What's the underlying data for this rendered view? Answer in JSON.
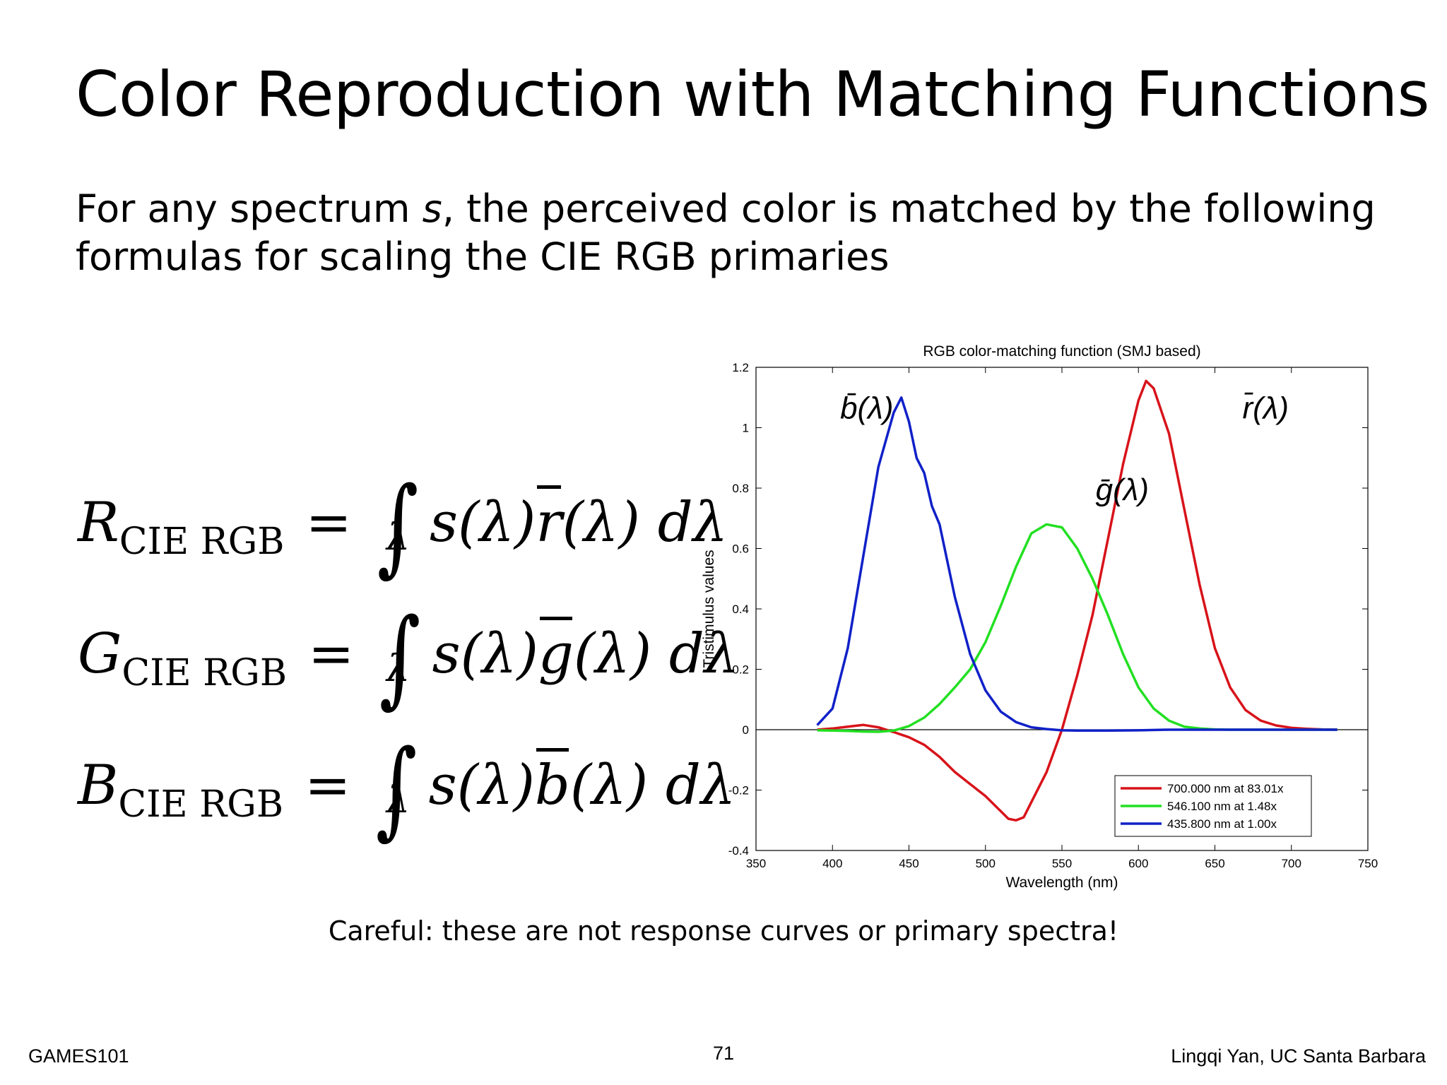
{
  "slide": {
    "title": "Color Reproduction with Matching Functions",
    "body_line1_pre": "For any spectrum ",
    "body_line1_var": "s",
    "body_line1_post": ", the perceived color is matched by the following",
    "body_line2": "formulas for scaling the CIE RGB primaries",
    "caption": "Careful: these are not response curves or primary spectra!",
    "footer_left": "GAMES101",
    "page_number": "71",
    "footer_right": "Lingqi Yan, UC Santa Barbara"
  },
  "formulas": [
    {
      "lhs": "R",
      "sub": "CIE RGB",
      "eq": "=",
      "lim": "λ",
      "integrand_pre": "s(λ)",
      "fn": "r",
      "integrand_post": "(λ) dλ"
    },
    {
      "lhs": "G",
      "sub": "CIE RGB",
      "eq": "=",
      "lim": "λ",
      "integrand_pre": "s(λ)",
      "fn": "g",
      "integrand_post": "(λ) dλ"
    },
    {
      "lhs": "B",
      "sub": "CIE RGB",
      "eq": "=",
      "lim": "λ",
      "integrand_pre": "s(λ)",
      "fn": "b",
      "integrand_post": "(λ) dλ"
    }
  ],
  "chart_data": {
    "type": "line",
    "title": "RGB color-matching function (SMJ based)",
    "xlabel": "Wavelength (nm)",
    "ylabel": "Tristimulus values",
    "xlim": [
      350,
      750
    ],
    "ylim": [
      -0.4,
      1.2
    ],
    "xticks": [
      "350",
      "400",
      "450",
      "500",
      "550",
      "600",
      "650",
      "700",
      "750"
    ],
    "yticks": [
      "-0.4",
      "-0.2",
      "0",
      "0.2",
      "0.4",
      "0.6",
      "0.8",
      "1",
      "1.2"
    ],
    "legend_position": "bottom-right",
    "annotations": [
      {
        "text": "b̄(λ)",
        "x": 405,
        "y": 1.03
      },
      {
        "text": "ḡ(λ)",
        "x": 572,
        "y": 0.76
      },
      {
        "text": "r̄(λ)",
        "x": 668,
        "y": 1.03
      }
    ],
    "series": [
      {
        "name": "700.000 nm at 83.01x",
        "color": "#d8131a",
        "points": [
          [
            390,
            0.0
          ],
          [
            400,
            0.004
          ],
          [
            410,
            0.01
          ],
          [
            420,
            0.016
          ],
          [
            430,
            0.008
          ],
          [
            440,
            -0.008
          ],
          [
            450,
            -0.025
          ],
          [
            460,
            -0.05
          ],
          [
            470,
            -0.09
          ],
          [
            480,
            -0.14
          ],
          [
            490,
            -0.18
          ],
          [
            500,
            -0.22
          ],
          [
            510,
            -0.27
          ],
          [
            515,
            -0.295
          ],
          [
            520,
            -0.3
          ],
          [
            525,
            -0.29
          ],
          [
            530,
            -0.24
          ],
          [
            540,
            -0.14
          ],
          [
            550,
            0.0
          ],
          [
            560,
            0.18
          ],
          [
            570,
            0.38
          ],
          [
            580,
            0.63
          ],
          [
            590,
            0.88
          ],
          [
            600,
            1.09
          ],
          [
            605,
            1.155
          ],
          [
            610,
            1.13
          ],
          [
            620,
            0.98
          ],
          [
            630,
            0.73
          ],
          [
            640,
            0.48
          ],
          [
            650,
            0.27
          ],
          [
            660,
            0.14
          ],
          [
            670,
            0.065
          ],
          [
            680,
            0.03
          ],
          [
            690,
            0.014
          ],
          [
            700,
            0.006
          ],
          [
            710,
            0.003
          ],
          [
            720,
            0.001
          ],
          [
            730,
            0.0
          ]
        ]
      },
      {
        "name": "546.100 nm at  1.48x",
        "color": "#22e022",
        "points": [
          [
            390,
            -0.002
          ],
          [
            400,
            -0.003
          ],
          [
            410,
            -0.004
          ],
          [
            420,
            -0.006
          ],
          [
            430,
            -0.007
          ],
          [
            440,
            -0.003
          ],
          [
            450,
            0.012
          ],
          [
            460,
            0.04
          ],
          [
            470,
            0.085
          ],
          [
            480,
            0.14
          ],
          [
            490,
            0.2
          ],
          [
            500,
            0.29
          ],
          [
            510,
            0.41
          ],
          [
            520,
            0.54
          ],
          [
            530,
            0.65
          ],
          [
            540,
            0.68
          ],
          [
            550,
            0.67
          ],
          [
            560,
            0.6
          ],
          [
            570,
            0.5
          ],
          [
            580,
            0.38
          ],
          [
            590,
            0.25
          ],
          [
            600,
            0.14
          ],
          [
            610,
            0.07
          ],
          [
            620,
            0.03
          ],
          [
            630,
            0.01
          ],
          [
            640,
            0.004
          ],
          [
            650,
            0.001
          ],
          [
            660,
            0.0
          ],
          [
            670,
            0.0
          ],
          [
            680,
            0.0
          ],
          [
            700,
            0.0
          ],
          [
            730,
            0.0
          ]
        ]
      },
      {
        "name": "435.800 nm at  1.00x",
        "color": "#1021c8",
        "points": [
          [
            390,
            0.015
          ],
          [
            400,
            0.07
          ],
          [
            410,
            0.27
          ],
          [
            420,
            0.57
          ],
          [
            430,
            0.87
          ],
          [
            440,
            1.05
          ],
          [
            445,
            1.1
          ],
          [
            450,
            1.02
          ],
          [
            455,
            0.9
          ],
          [
            460,
            0.85
          ],
          [
            465,
            0.74
          ],
          [
            470,
            0.68
          ],
          [
            480,
            0.44
          ],
          [
            490,
            0.25
          ],
          [
            500,
            0.13
          ],
          [
            510,
            0.06
          ],
          [
            520,
            0.025
          ],
          [
            530,
            0.008
          ],
          [
            540,
            0.002
          ],
          [
            550,
            -0.002
          ],
          [
            560,
            -0.003
          ],
          [
            570,
            -0.003
          ],
          [
            580,
            -0.003
          ],
          [
            600,
            -0.002
          ],
          [
            620,
            0.0
          ],
          [
            650,
            0.0
          ],
          [
            700,
            0.0
          ],
          [
            730,
            0.0
          ]
        ]
      }
    ]
  }
}
